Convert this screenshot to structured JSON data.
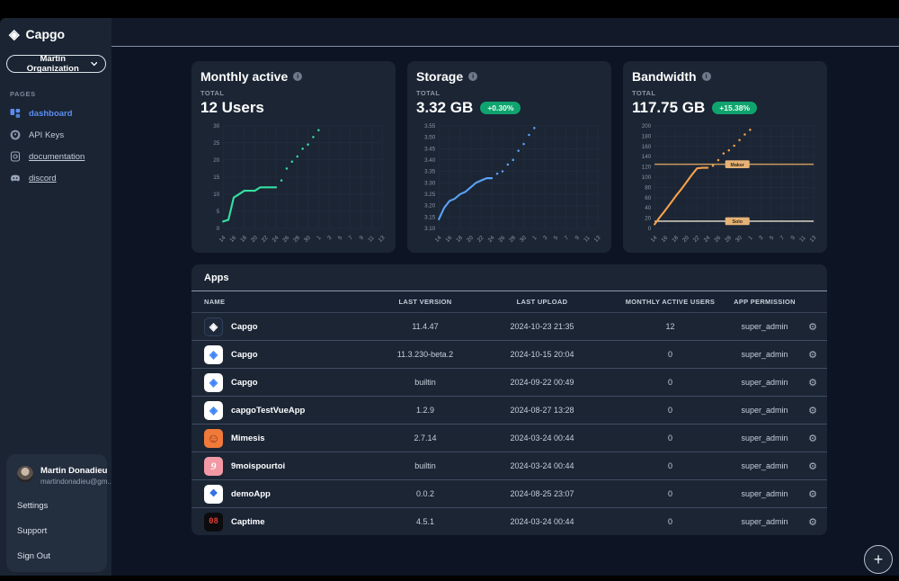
{
  "sidebar": {
    "brand": "Capgo",
    "brand_icon": "capgo-diamond-icon",
    "org_selector": "Martin Organization",
    "section_label": "PAGES",
    "items": [
      {
        "label": "dashboard",
        "icon": "dashboard-icon",
        "active": true,
        "underline": false
      },
      {
        "label": "API Keys",
        "icon": "key-icon",
        "active": false,
        "underline": false
      },
      {
        "label": "documentation",
        "icon": "document-icon",
        "active": false,
        "underline": true
      },
      {
        "label": "discord",
        "icon": "discord-icon",
        "active": false,
        "underline": true
      }
    ],
    "user": {
      "name": "Martin Donadieu",
      "email": "martindonadieu@gm...",
      "menu": [
        "Settings",
        "Support",
        "Sign Out"
      ]
    }
  },
  "cards": [
    {
      "title": "Monthly active",
      "total_label": "TOTAL",
      "total": "12 Users",
      "badge": null
    },
    {
      "title": "Storage",
      "total_label": "TOTAL",
      "total": "3.32 GB",
      "badge": "+0.30%"
    },
    {
      "title": "Bandwidth",
      "total_label": "TOTAL",
      "total": "117.75 GB",
      "badge": "+15.38%"
    }
  ],
  "chart_data": [
    {
      "type": "line",
      "title": "Monthly active",
      "color": "#35dfa0",
      "x_tick_labels": [
        "14",
        "16",
        "18",
        "20",
        "22",
        "24",
        "26",
        "28",
        "30",
        "1",
        "3",
        "5",
        "7",
        "9",
        "11",
        "13"
      ],
      "x_domain_points": 31,
      "solid_start_index": 0,
      "solid_values": [
        2,
        2.5,
        9,
        10,
        11,
        11,
        11,
        12,
        12,
        12,
        12
      ],
      "forecast_start_index": 11,
      "forecast_values": [
        14,
        17.5,
        19.5,
        21,
        23.3,
        24.5,
        26.7,
        28.7
      ],
      "ylim": [
        0,
        30
      ],
      "yticks": [
        0,
        5,
        10,
        15,
        20,
        25,
        30
      ],
      "y_decimals": 0,
      "grid": true,
      "ref_lines": []
    },
    {
      "type": "line",
      "title": "Storage",
      "color": "#5aa2f7",
      "x_tick_labels": [
        "14",
        "16",
        "18",
        "20",
        "22",
        "24",
        "26",
        "28",
        "30",
        "1",
        "3",
        "5",
        "7",
        "9",
        "11",
        "13"
      ],
      "x_domain_points": 31,
      "solid_start_index": 0,
      "solid_values": [
        3.14,
        3.19,
        3.22,
        3.23,
        3.25,
        3.26,
        3.28,
        3.3,
        3.31,
        3.32,
        3.32
      ],
      "forecast_start_index": 11,
      "forecast_values": [
        3.34,
        3.35,
        3.38,
        3.4,
        3.44,
        3.47,
        3.51,
        3.54
      ],
      "ylim": [
        3.1,
        3.55
      ],
      "yticks": [
        3.1,
        3.15,
        3.2,
        3.25,
        3.3,
        3.35,
        3.4,
        3.45,
        3.5,
        3.55
      ],
      "y_decimals": 2,
      "grid": true,
      "ref_lines": []
    },
    {
      "type": "line",
      "title": "Bandwidth",
      "color": "#f5a04b",
      "x_tick_labels": [
        "14",
        "16",
        "18",
        "20",
        "22",
        "24",
        "26",
        "28",
        "30",
        "1",
        "3",
        "5",
        "7",
        "9",
        "11",
        "13"
      ],
      "x_domain_points": 31,
      "solid_start_index": 0,
      "solid_values": [
        8,
        22,
        35,
        49,
        63,
        76,
        90,
        104,
        117,
        118,
        118
      ],
      "forecast_start_index": 11,
      "forecast_values": [
        122,
        133,
        146,
        152,
        161,
        172,
        183,
        192
      ],
      "ylim": [
        0,
        200
      ],
      "yticks": [
        0,
        20,
        40,
        60,
        80,
        100,
        120,
        140,
        160,
        180,
        200
      ],
      "y_decimals": 0,
      "grid": true,
      "ref_lines": [
        {
          "label": "Maker",
          "value": 125,
          "line_color": "#cf9a5e",
          "badge_color": "#e5b377"
        },
        {
          "label": "Solo",
          "value": 14,
          "line_color": "#ece4d0",
          "badge_color": "#e5b377"
        }
      ]
    }
  ],
  "apps": {
    "title": "Apps",
    "columns": [
      "NAME",
      "LAST VERSION",
      "LAST UPLOAD",
      "MONTHLY ACTIVE USERS",
      "APP PERMISSION"
    ],
    "rows": [
      {
        "name": "Capgo",
        "icon": "capgo-dark",
        "glyph": "◈",
        "version": "11.4.47",
        "upload": "2024-10-23 21:35",
        "mau": "12",
        "permission": "super_admin"
      },
      {
        "name": "Capgo",
        "icon": "capgo-light",
        "glyph": "◈",
        "version": "11.3.230-beta.2",
        "upload": "2024-10-15 20:04",
        "mau": "0",
        "permission": "super_admin"
      },
      {
        "name": "Capgo",
        "icon": "capgo-light",
        "glyph": "◈",
        "version": "builtin",
        "upload": "2024-09-22 00:49",
        "mau": "0",
        "permission": "super_admin"
      },
      {
        "name": "capgoTestVueApp",
        "icon": "capgo-light",
        "glyph": "◈",
        "version": "1.2.9",
        "upload": "2024-08-27 13:28",
        "mau": "0",
        "permission": "super_admin"
      },
      {
        "name": "Mimesis",
        "icon": "mimesis",
        "glyph": "☺",
        "version": "2.7.14",
        "upload": "2024-03-24 00:44",
        "mau": "0",
        "permission": "super_admin"
      },
      {
        "name": "9moispourtoi",
        "icon": "ninemois",
        "glyph": "9",
        "version": "builtin",
        "upload": "2024-03-24 00:44",
        "mau": "0",
        "permission": "super_admin"
      },
      {
        "name": "demoApp",
        "icon": "demoapp",
        "glyph": "❖",
        "version": "0.0.2",
        "upload": "2024-08-25 23:07",
        "mau": "0",
        "permission": "super_admin"
      },
      {
        "name": "Captime",
        "icon": "captime",
        "glyph": "08",
        "version": "4.5.1",
        "upload": "2024-03-24 00:44",
        "mau": "0",
        "permission": "super_admin"
      }
    ],
    "row_action_icon": "gear-icon"
  },
  "fab": {
    "label": "+",
    "icon": "plus-icon"
  }
}
